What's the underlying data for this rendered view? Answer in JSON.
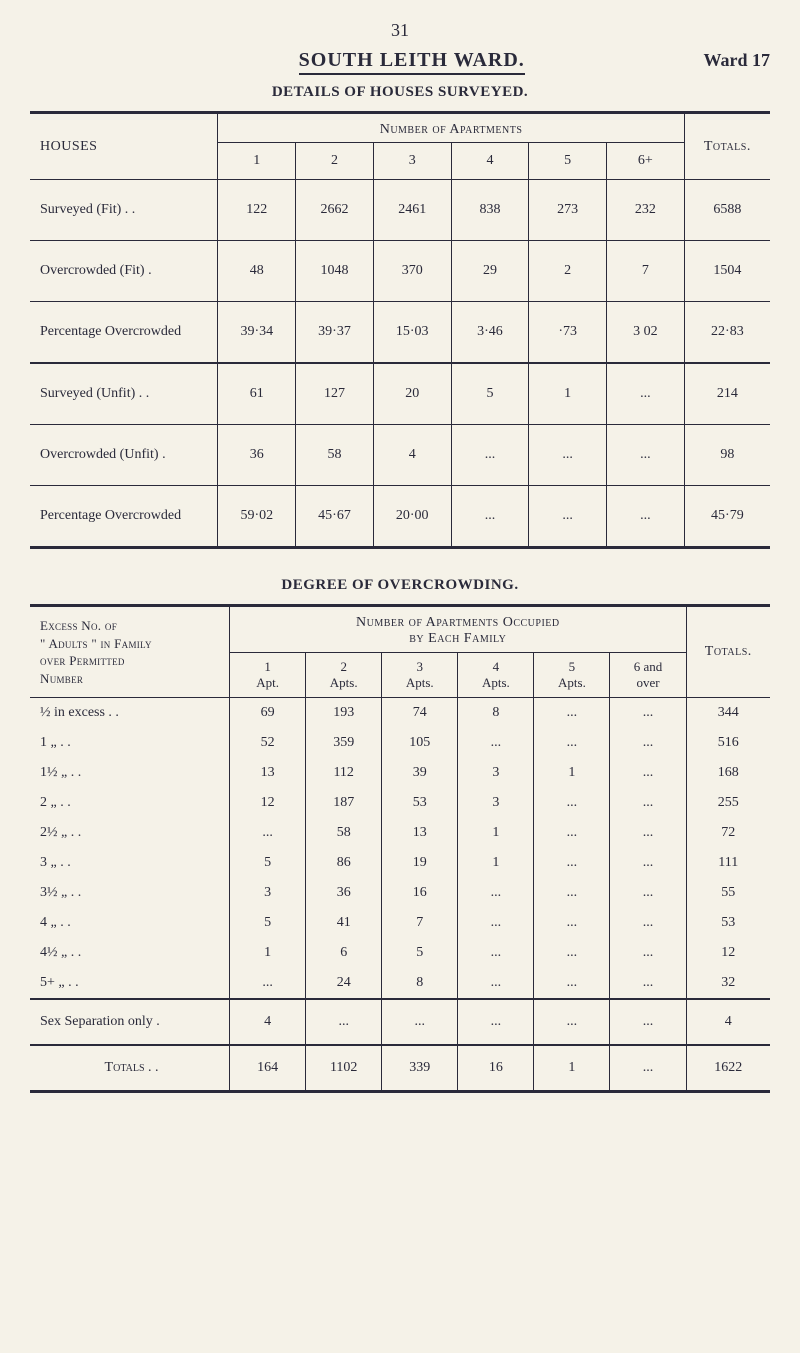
{
  "page_number": "31",
  "title": "SOUTH LEITH WARD.",
  "ward_label": "Ward 17",
  "subtitle": "DETAILS OF HOUSES SURVEYED.",
  "table1": {
    "row_header": "HOUSES",
    "group_header": "Number of Apartments",
    "totals_header": "Totals.",
    "cols": [
      "1",
      "2",
      "3",
      "4",
      "5",
      "6+"
    ],
    "rows": [
      {
        "label": "Surveyed (Fit)     .     .",
        "cells": [
          "122",
          "2662",
          "2461",
          "838",
          "273",
          "232",
          "6588"
        ]
      },
      {
        "label": "Overcrowded (Fit)     .",
        "cells": [
          "48",
          "1048",
          "370",
          "29",
          "2",
          "7",
          "1504"
        ]
      },
      {
        "label": "Percentage Overcrowded",
        "cells": [
          "39·34",
          "39·37",
          "15·03",
          "3·46",
          "·73",
          "3 02",
          "22·83"
        ],
        "heavy": true
      },
      {
        "label": "Surveyed (Unfit) .     .",
        "cells": [
          "61",
          "127",
          "20",
          "5",
          "1",
          "...",
          "214"
        ]
      },
      {
        "label": "Overcrowded (Unfit)   .",
        "cells": [
          "36",
          "58",
          "4",
          "...",
          "...",
          "...",
          "98"
        ]
      },
      {
        "label": "Percentage Overcrowded",
        "cells": [
          "59·02",
          "45·67",
          "20·00",
          "...",
          "...",
          "...",
          "45·79"
        ],
        "last": true
      }
    ]
  },
  "mid_title": "DEGREE OF OVERCROWDING.",
  "table2": {
    "row_header_l1": "Excess No. of",
    "row_header_l2": "\" Adults \" in Family",
    "row_header_l3": "over Permitted",
    "row_header_l4": "Number",
    "group_header": "Number of Apartments Occupied",
    "group_header_l2": "by Each Family",
    "totals_header": "Totals.",
    "sub_cols": [
      {
        "a": "1",
        "b": "Apt."
      },
      {
        "a": "2",
        "b": "Apts."
      },
      {
        "a": "3",
        "b": "Apts."
      },
      {
        "a": "4",
        "b": "Apts."
      },
      {
        "a": "5",
        "b": "Apts."
      },
      {
        "a": "6 and",
        "b": "over"
      }
    ],
    "rows": [
      {
        "label": "½ in excess     .     .",
        "cells": [
          "69",
          "193",
          "74",
          "8",
          "...",
          "...",
          "344"
        ]
      },
      {
        "label": "1         „           .   .",
        "cells": [
          "52",
          "359",
          "105",
          "...",
          "...",
          "...",
          "516"
        ]
      },
      {
        "label": "1½       „           .   .",
        "cells": [
          "13",
          "112",
          "39",
          "3",
          "1",
          "...",
          "168"
        ]
      },
      {
        "label": "2         „           .   .",
        "cells": [
          "12",
          "187",
          "53",
          "3",
          "...",
          "...",
          "255"
        ]
      },
      {
        "label": "2½       „           .   .",
        "cells": [
          "...",
          "58",
          "13",
          "1",
          "...",
          "...",
          "72"
        ]
      },
      {
        "label": "3         „           .   .",
        "cells": [
          "5",
          "86",
          "19",
          "1",
          "...",
          "...",
          "111"
        ]
      },
      {
        "label": "3½       „           .   .",
        "cells": [
          "3",
          "36",
          "16",
          "...",
          "...",
          "...",
          "55"
        ]
      },
      {
        "label": "4         „           .   .",
        "cells": [
          "5",
          "41",
          "7",
          "...",
          "...",
          "...",
          "53"
        ]
      },
      {
        "label": "4½       „           .   .",
        "cells": [
          "1",
          "6",
          "5",
          "...",
          "...",
          "...",
          "12"
        ]
      },
      {
        "label": "5+       „           .   .",
        "cells": [
          "...",
          "24",
          "8",
          "...",
          "...",
          "...",
          "32"
        ]
      }
    ],
    "sex_row": {
      "label": "Sex Separation only   .",
      "cells": [
        "4",
        "...",
        "...",
        "...",
        "...",
        "...",
        "4"
      ]
    },
    "totals_row": {
      "label": "Totals .   .",
      "cells": [
        "164",
        "1102",
        "339",
        "16",
        "1",
        "...",
        "1622"
      ]
    }
  }
}
